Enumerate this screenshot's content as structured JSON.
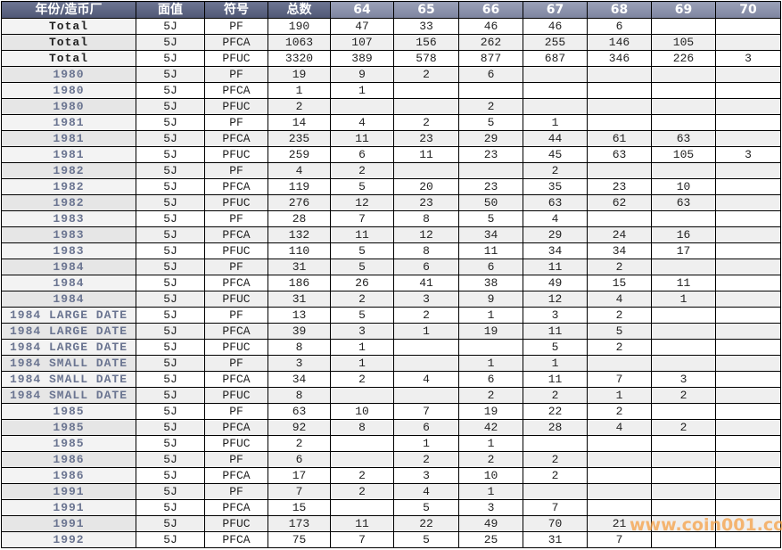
{
  "headers": [
    "年份/造币厂",
    "面值",
    "符号",
    "总数",
    "64",
    "65",
    "66",
    "67",
    "68",
    "69",
    "70"
  ],
  "rows": [
    [
      "Total",
      "5J",
      "PF",
      "190",
      "47",
      "33",
      "46",
      "46",
      "6",
      "",
      ""
    ],
    [
      "Total",
      "5J",
      "PFCA",
      "1063",
      "107",
      "156",
      "262",
      "255",
      "146",
      "105",
      ""
    ],
    [
      "Total",
      "5J",
      "PFUC",
      "3320",
      "389",
      "578",
      "877",
      "687",
      "346",
      "226",
      "3"
    ],
    [
      "1980",
      "5J",
      "PF",
      "19",
      "9",
      "2",
      "6",
      "",
      "",
      "",
      ""
    ],
    [
      "1980",
      "5J",
      "PFCA",
      "1",
      "1",
      "",
      "",
      "",
      "",
      "",
      ""
    ],
    [
      "1980",
      "5J",
      "PFUC",
      "2",
      "",
      "",
      "2",
      "",
      "",
      "",
      ""
    ],
    [
      "1981",
      "5J",
      "PF",
      "14",
      "4",
      "2",
      "5",
      "1",
      "",
      "",
      ""
    ],
    [
      "1981",
      "5J",
      "PFCA",
      "235",
      "11",
      "23",
      "29",
      "44",
      "61",
      "63",
      ""
    ],
    [
      "1981",
      "5J",
      "PFUC",
      "259",
      "6",
      "11",
      "23",
      "45",
      "63",
      "105",
      "3"
    ],
    [
      "1982",
      "5J",
      "PF",
      "4",
      "2",
      "",
      "",
      "2",
      "",
      "",
      ""
    ],
    [
      "1982",
      "5J",
      "PFCA",
      "119",
      "5",
      "20",
      "23",
      "35",
      "23",
      "10",
      ""
    ],
    [
      "1982",
      "5J",
      "PFUC",
      "276",
      "12",
      "23",
      "50",
      "63",
      "62",
      "63",
      ""
    ],
    [
      "1983",
      "5J",
      "PF",
      "28",
      "7",
      "8",
      "5",
      "4",
      "",
      "",
      ""
    ],
    [
      "1983",
      "5J",
      "PFCA",
      "132",
      "11",
      "12",
      "34",
      "29",
      "24",
      "16",
      ""
    ],
    [
      "1983",
      "5J",
      "PFUC",
      "110",
      "5",
      "8",
      "11",
      "34",
      "34",
      "17",
      ""
    ],
    [
      "1984",
      "5J",
      "PF",
      "31",
      "5",
      "6",
      "6",
      "11",
      "2",
      "",
      ""
    ],
    [
      "1984",
      "5J",
      "PFCA",
      "186",
      "26",
      "41",
      "38",
      "49",
      "15",
      "11",
      ""
    ],
    [
      "1984",
      "5J",
      "PFUC",
      "31",
      "2",
      "3",
      "9",
      "12",
      "4",
      "1",
      ""
    ],
    [
      "1984 LARGE DATE",
      "5J",
      "PF",
      "13",
      "5",
      "2",
      "1",
      "3",
      "2",
      "",
      ""
    ],
    [
      "1984 LARGE DATE",
      "5J",
      "PFCA",
      "39",
      "3",
      "1",
      "19",
      "11",
      "5",
      "",
      ""
    ],
    [
      "1984 LARGE DATE",
      "5J",
      "PFUC",
      "8",
      "1",
      "",
      "",
      "5",
      "2",
      "",
      ""
    ],
    [
      "1984 SMALL DATE",
      "5J",
      "PF",
      "3",
      "1",
      "",
      "1",
      "1",
      "",
      "",
      ""
    ],
    [
      "1984 SMALL DATE",
      "5J",
      "PFCA",
      "34",
      "2",
      "4",
      "6",
      "11",
      "7",
      "3",
      ""
    ],
    [
      "1984 SMALL DATE",
      "5J",
      "PFUC",
      "8",
      "",
      "",
      "2",
      "2",
      "1",
      "2",
      ""
    ],
    [
      "1985",
      "5J",
      "PF",
      "63",
      "10",
      "7",
      "19",
      "22",
      "2",
      "",
      ""
    ],
    [
      "1985",
      "5J",
      "PFCA",
      "92",
      "8",
      "6",
      "42",
      "28",
      "4",
      "2",
      ""
    ],
    [
      "1985",
      "5J",
      "PFUC",
      "2",
      "",
      "1",
      "1",
      "",
      "",
      "",
      ""
    ],
    [
      "1986",
      "5J",
      "PF",
      "6",
      "",
      "2",
      "2",
      "2",
      "",
      "",
      ""
    ],
    [
      "1986",
      "5J",
      "PFCA",
      "17",
      "2",
      "3",
      "10",
      "2",
      "",
      "",
      ""
    ],
    [
      "1991",
      "5J",
      "PF",
      "7",
      "2",
      "4",
      "1",
      "",
      "",
      "",
      ""
    ],
    [
      "1991",
      "5J",
      "PFCA",
      "15",
      "",
      "5",
      "3",
      "7",
      "",
      "",
      ""
    ],
    [
      "1991",
      "5J",
      "PFUC",
      "173",
      "11",
      "22",
      "49",
      "70",
      "21",
      "",
      ""
    ],
    [
      "1992",
      "5J",
      "PFCA",
      "75",
      "7",
      "5",
      "25",
      "31",
      "7",
      "",
      ""
    ]
  ],
  "watermark": "www.coin001.com"
}
